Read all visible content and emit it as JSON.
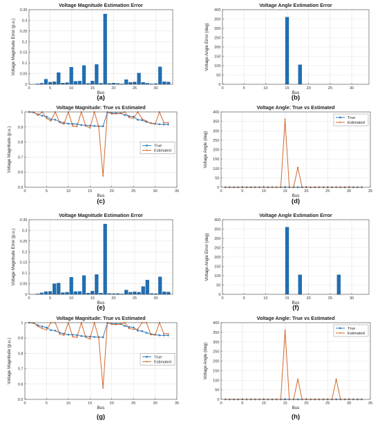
{
  "chart_data": [
    {
      "id": "a",
      "panel_label": "(a)",
      "type": "bar",
      "title": "Voltage Magnitude Estimation Error",
      "xlabel": "Bus",
      "ylabel": "Voltage Magnitude Error (p.u.)",
      "xlim": [
        0,
        34
      ],
      "ylim": [
        0,
        0.35
      ],
      "xticks": [
        0,
        5,
        10,
        15,
        20,
        25,
        30
      ],
      "yticks": [
        0,
        0.05,
        0.1,
        0.15,
        0.2,
        0.25,
        0.3,
        0.35
      ],
      "ytick_labels": [
        "0",
        "0.05",
        "0.1",
        "0.15",
        "0.2",
        "0.25",
        "0.3",
        "0.35"
      ],
      "grid": true,
      "x": [
        1,
        2,
        3,
        4,
        5,
        6,
        7,
        8,
        9,
        10,
        11,
        12,
        13,
        14,
        15,
        16,
        17,
        18,
        19,
        20,
        21,
        22,
        23,
        24,
        25,
        26,
        27,
        28,
        29,
        30,
        31,
        32,
        33
      ],
      "values": [
        0,
        0.002,
        0.005,
        0.024,
        0.01,
        0.012,
        0.055,
        0.006,
        0.008,
        0.08,
        0.014,
        0.015,
        0.088,
        0.004,
        0.015,
        0.093,
        0.005,
        0.33,
        0.004,
        0.006,
        0.004,
        0.002,
        0.022,
        0.009,
        0.011,
        0.053,
        0.009,
        0.005,
        0.002,
        0.003,
        0.082,
        0.012,
        0.011
      ]
    },
    {
      "id": "b",
      "panel_label": "(b)",
      "type": "bar",
      "title": "Voltage Angle Estimation Error",
      "xlabel": "Bus",
      "ylabel": "Voltage Angle Error (deg)",
      "xlim": [
        0,
        34
      ],
      "ylim": [
        0,
        400
      ],
      "xticks": [
        0,
        5,
        10,
        15,
        20,
        25,
        30
      ],
      "yticks": [
        0,
        50,
        100,
        150,
        200,
        250,
        300,
        350,
        400
      ],
      "ytick_labels": [
        "0",
        "50",
        "100",
        "150",
        "200",
        "250",
        "300",
        "350",
        "400"
      ],
      "grid": true,
      "x": [
        15,
        18
      ],
      "values": [
        360,
        105
      ]
    },
    {
      "id": "c",
      "panel_label": "(c)",
      "type": "line",
      "title": "Voltage Magnitude: True vs Estimated",
      "xlabel": "Bus",
      "ylabel": "Voltage Magnitude (p.u.)",
      "xlim": [
        0,
        35
      ],
      "ylim": [
        0.5,
        1.0
      ],
      "xticks": [
        0,
        5,
        10,
        15,
        20,
        25,
        30,
        35
      ],
      "yticks": [
        0.5,
        0.6,
        0.7,
        0.8,
        0.9,
        1.0
      ],
      "ytick_labels": [
        "0.5",
        "0.6",
        "0.7",
        "0.8",
        "0.9",
        "1"
      ],
      "grid": true,
      "legend_position": "center-right",
      "x": [
        1,
        2,
        3,
        4,
        5,
        6,
        7,
        8,
        9,
        10,
        11,
        12,
        13,
        14,
        15,
        16,
        17,
        18,
        19,
        20,
        21,
        22,
        23,
        24,
        25,
        26,
        27,
        28,
        29,
        30,
        31,
        32,
        33
      ],
      "series": [
        {
          "name": "True",
          "values": [
            1.0,
            0.997,
            0.983,
            0.975,
            0.968,
            0.951,
            0.948,
            0.935,
            0.928,
            0.922,
            0.921,
            0.919,
            0.913,
            0.911,
            0.909,
            0.907,
            0.906,
            0.905,
            0.997,
            0.993,
            0.992,
            0.992,
            0.979,
            0.972,
            0.969,
            0.948,
            0.945,
            0.934,
            0.926,
            0.922,
            0.918,
            0.917,
            0.917
          ]
        },
        {
          "name": "Estimated",
          "values": [
            1.0,
            0.999,
            0.978,
            1.0,
            0.958,
            0.94,
            1.0,
            0.93,
            0.92,
            1.0,
            0.907,
            0.904,
            1.0,
            0.907,
            0.894,
            1.0,
            0.901,
            0.575,
            1.0,
            0.987,
            0.988,
            0.99,
            1.0,
            0.963,
            0.958,
            1.0,
            0.954,
            0.939,
            0.924,
            0.919,
            1.0,
            0.929,
            0.928
          ]
        }
      ]
    },
    {
      "id": "d",
      "panel_label": "(d)",
      "type": "line",
      "title": "Voltage Angle: True vs Estimated",
      "xlabel": "Bus",
      "ylabel": "Voltage Angle (deg)",
      "xlim": [
        0,
        35
      ],
      "ylim": [
        0,
        400
      ],
      "xticks": [
        0,
        5,
        10,
        15,
        20,
        25,
        30,
        35
      ],
      "yticks": [
        0,
        50,
        100,
        150,
        200,
        250,
        300,
        350,
        400
      ],
      "ytick_labels": [
        "0",
        "50",
        "100",
        "150",
        "200",
        "250",
        "300",
        "350",
        "400"
      ],
      "grid": true,
      "legend_position": "top-right",
      "x": [
        1,
        2,
        3,
        4,
        5,
        6,
        7,
        8,
        9,
        10,
        11,
        12,
        13,
        14,
        15,
        16,
        17,
        18,
        19,
        20,
        21,
        22,
        23,
        24,
        25,
        26,
        27,
        28,
        29,
        30,
        31,
        32,
        33
      ],
      "series": [
        {
          "name": "True",
          "values": [
            0,
            0,
            0,
            0,
            0,
            0,
            0,
            0,
            0,
            0,
            0,
            0,
            0,
            0,
            0,
            0,
            0,
            0,
            0,
            0,
            0,
            0,
            0,
            0,
            0,
            0,
            0,
            0,
            0,
            0,
            0,
            0,
            0
          ]
        },
        {
          "name": "Estimated",
          "values": [
            0,
            0,
            0,
            0,
            0,
            0,
            0,
            0,
            0,
            0,
            0,
            0,
            0,
            0,
            360,
            0,
            0,
            105,
            0,
            0,
            0,
            0,
            0,
            0,
            0,
            0,
            0,
            0,
            0,
            0,
            0,
            0,
            0
          ]
        }
      ]
    },
    {
      "id": "e",
      "panel_label": "(e)",
      "type": "bar",
      "title": "Voltage Magnitude Estimation Error",
      "xlabel": "Bus",
      "ylabel": "Voltage Magnitude Error (p.u.)",
      "xlim": [
        0,
        34
      ],
      "ylim": [
        0,
        0.35
      ],
      "xticks": [
        0,
        5,
        10,
        15,
        20,
        25,
        30
      ],
      "yticks": [
        0,
        0.05,
        0.1,
        0.15,
        0.2,
        0.25,
        0.3,
        0.35
      ],
      "ytick_labels": [
        "0",
        "0.05",
        "0.1",
        "0.15",
        "0.2",
        "0.25",
        "0.3",
        "0.35"
      ],
      "grid": true,
      "x": [
        1,
        2,
        3,
        4,
        5,
        6,
        7,
        8,
        9,
        10,
        11,
        12,
        13,
        14,
        15,
        16,
        17,
        18,
        19,
        20,
        21,
        22,
        23,
        24,
        25,
        26,
        27,
        28,
        29,
        30,
        31,
        32,
        33
      ],
      "values": [
        0,
        0.002,
        0.007,
        0.013,
        0.014,
        0.05,
        0.053,
        0.008,
        0.01,
        0.08,
        0.013,
        0.014,
        0.088,
        0.006,
        0.015,
        0.093,
        0.006,
        0.33,
        0.004,
        0.003,
        0.004,
        0.002,
        0.02,
        0.01,
        0.012,
        0.01,
        0.037,
        0.067,
        0.004,
        0.003,
        0.082,
        0.012,
        0.011
      ]
    },
    {
      "id": "f",
      "panel_label": "(f)",
      "type": "bar",
      "title": "Voltage Angle Estimation Error",
      "xlabel": "Bus",
      "ylabel": "Voltage Angle Error (deg)",
      "xlim": [
        0,
        34
      ],
      "ylim": [
        0,
        400
      ],
      "xticks": [
        0,
        5,
        10,
        15,
        20,
        25,
        30
      ],
      "yticks": [
        0,
        50,
        100,
        150,
        200,
        250,
        300,
        350,
        400
      ],
      "ytick_labels": [
        "0",
        "50",
        "100",
        "150",
        "200",
        "250",
        "300",
        "350",
        "400"
      ],
      "grid": true,
      "x": [
        15,
        18,
        27
      ],
      "values": [
        360,
        105,
        105
      ]
    },
    {
      "id": "g",
      "panel_label": "(g)",
      "type": "line",
      "title": "Voltage Magnitude: True vs Estimated",
      "xlabel": "Bus",
      "ylabel": "Voltage Magnitude (p.u.)",
      "xlim": [
        0,
        35
      ],
      "ylim": [
        0.5,
        1.0
      ],
      "xticks": [
        0,
        5,
        10,
        15,
        20,
        25,
        30,
        35
      ],
      "yticks": [
        0.5,
        0.6,
        0.7,
        0.8,
        0.9,
        1.0
      ],
      "ytick_labels": [
        "0.5",
        "0.6",
        "0.7",
        "0.8",
        "0.9",
        "1"
      ],
      "grid": true,
      "legend_position": "center-right",
      "x": [
        1,
        2,
        3,
        4,
        5,
        6,
        7,
        8,
        9,
        10,
        11,
        12,
        13,
        14,
        15,
        16,
        17,
        18,
        19,
        20,
        21,
        22,
        23,
        24,
        25,
        26,
        27,
        28,
        29,
        30,
        31,
        32,
        33
      ],
      "series": [
        {
          "name": "True",
          "values": [
            1.0,
            0.997,
            0.983,
            0.975,
            0.968,
            0.951,
            0.948,
            0.935,
            0.928,
            0.922,
            0.921,
            0.919,
            0.913,
            0.911,
            0.909,
            0.907,
            0.906,
            0.905,
            0.997,
            0.993,
            0.992,
            0.992,
            0.979,
            0.972,
            0.969,
            0.948,
            0.945,
            0.934,
            0.926,
            0.922,
            0.918,
            0.917,
            0.917
          ]
        },
        {
          "name": "Estimated",
          "values": [
            1.0,
            0.999,
            0.976,
            0.962,
            0.954,
            1.0,
            1.0,
            0.927,
            0.918,
            1.0,
            0.908,
            0.905,
            1.0,
            0.905,
            0.894,
            1.0,
            0.9,
            0.575,
            1.0,
            0.99,
            0.988,
            0.99,
            1.0,
            0.962,
            0.957,
            0.958,
            1.0,
            1.0,
            0.922,
            0.919,
            1.0,
            0.929,
            0.928
          ]
        }
      ]
    },
    {
      "id": "h",
      "panel_label": "(h)",
      "type": "line",
      "title": "Voltage Angle: True vs Estimated",
      "xlabel": "Bus",
      "ylabel": "Voltage Angle (deg)",
      "xlim": [
        0,
        35
      ],
      "ylim": [
        0,
        400
      ],
      "xticks": [
        0,
        5,
        10,
        15,
        20,
        25,
        30,
        35
      ],
      "yticks": [
        0,
        50,
        100,
        150,
        200,
        250,
        300,
        350,
        400
      ],
      "ytick_labels": [
        "0",
        "50",
        "100",
        "150",
        "200",
        "250",
        "300",
        "350",
        "400"
      ],
      "grid": true,
      "legend_position": "top-right",
      "x": [
        1,
        2,
        3,
        4,
        5,
        6,
        7,
        8,
        9,
        10,
        11,
        12,
        13,
        14,
        15,
        16,
        17,
        18,
        19,
        20,
        21,
        22,
        23,
        24,
        25,
        26,
        27,
        28,
        29,
        30,
        31,
        32,
        33
      ],
      "series": [
        {
          "name": "True",
          "values": [
            0,
            0,
            0,
            0,
            0,
            0,
            0,
            0,
            0,
            0,
            0,
            0,
            0,
            0,
            0,
            0,
            0,
            0,
            0,
            0,
            0,
            0,
            0,
            0,
            0,
            0,
            0,
            0,
            0,
            0,
            0,
            0,
            0
          ]
        },
        {
          "name": "Estimated",
          "values": [
            0,
            0,
            0,
            0,
            0,
            0,
            0,
            0,
            0,
            0,
            0,
            0,
            0,
            0,
            360,
            0,
            0,
            105,
            0,
            0,
            0,
            0,
            0,
            0,
            0,
            0,
            105,
            0,
            0,
            0,
            0,
            0,
            0
          ]
        }
      ]
    }
  ],
  "colors": {
    "bar": "#1f6fb4",
    "bar_edge": "#0f4f8a",
    "true_line": "#2f7dbd",
    "estimated_line": "#d3672a",
    "grid": "#e3e3e3",
    "axis": "#444444"
  }
}
